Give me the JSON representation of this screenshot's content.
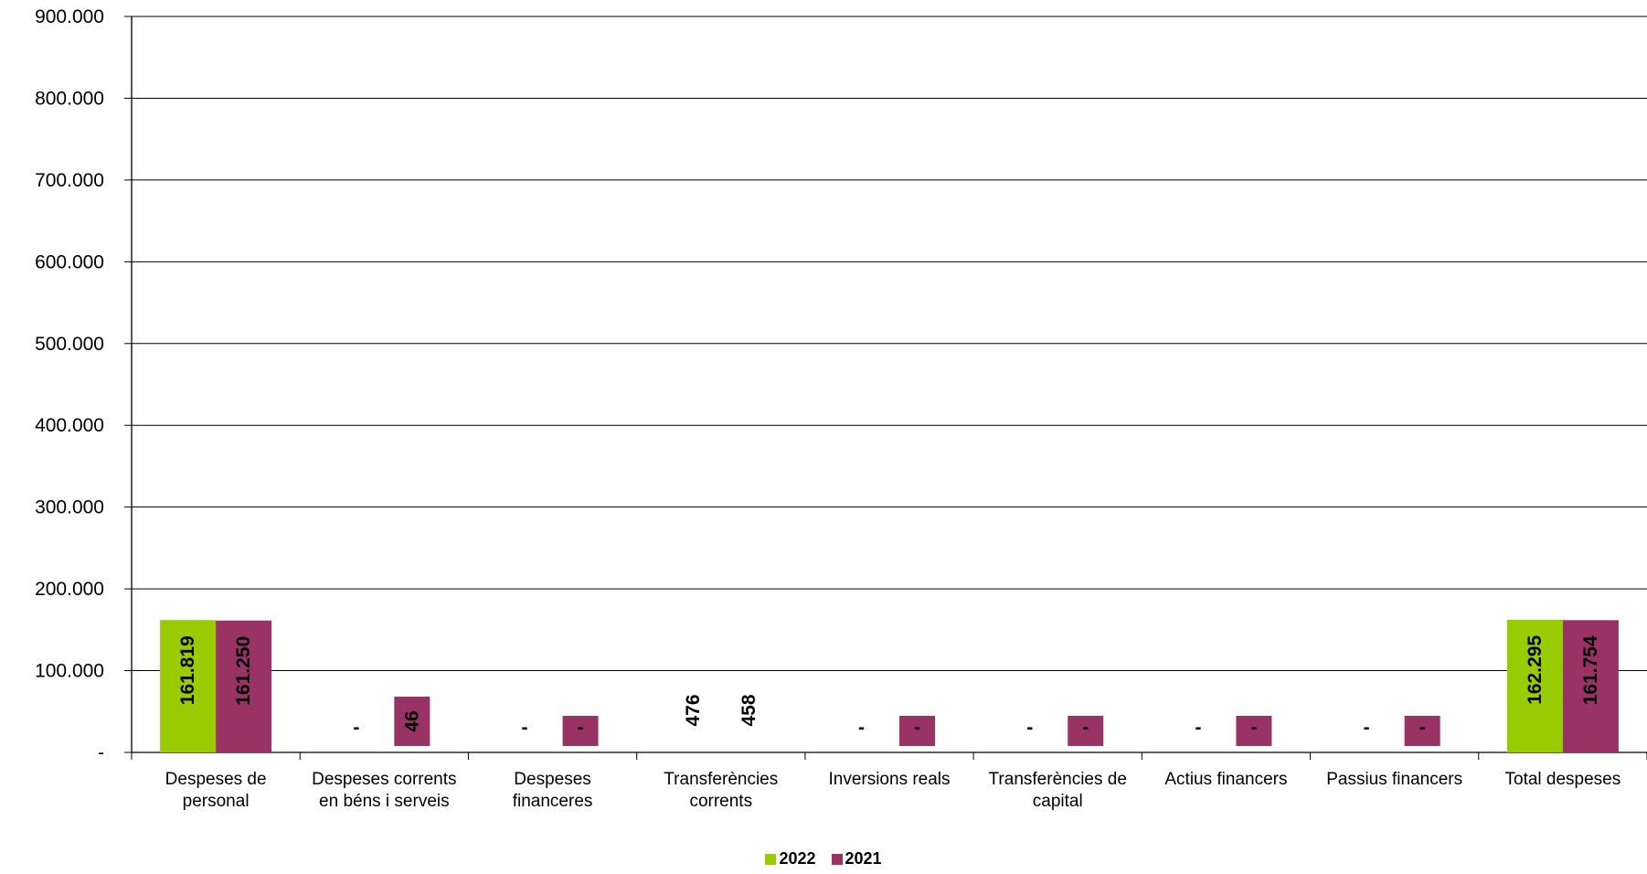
{
  "chart_data": {
    "type": "bar",
    "categories": [
      [
        "Despeses de",
        "personal"
      ],
      [
        "Despeses corrents",
        "en béns i serveis"
      ],
      [
        "Despeses",
        "financeres"
      ],
      [
        "Transferències",
        "corrents"
      ],
      [
        "Inversions reals"
      ],
      [
        "Transferències de",
        "capital"
      ],
      [
        "Actius financers"
      ],
      [
        "Passius financers"
      ],
      [
        "Total despeses"
      ]
    ],
    "series": [
      {
        "name": "2022",
        "color": "#99CC00",
        "values": [
          161819,
          0,
          0,
          476,
          0,
          0,
          0,
          0,
          162295
        ],
        "labels": [
          "161.819",
          "-",
          "-",
          "476",
          "-",
          "-",
          "-",
          "-",
          "162.295"
        ]
      },
      {
        "name": "2021",
        "color": "#993366",
        "values": [
          161250,
          46,
          0,
          458,
          0,
          0,
          0,
          0,
          161754
        ],
        "labels": [
          "161.250",
          "46",
          "-",
          "458",
          "-",
          "-",
          "-",
          "-",
          "161.754"
        ]
      }
    ],
    "ylim": [
      0,
      900000
    ],
    "yticks": [
      0,
      100000,
      200000,
      300000,
      400000,
      500000,
      600000,
      700000,
      800000,
      900000
    ],
    "ytick_labels": [
      "-",
      "100.000",
      "200.000",
      "300.000",
      "400.000",
      "500.000",
      "600.000",
      "700.000",
      "800.000",
      "900.000"
    ],
    "grid": true,
    "legend_position": "bottom"
  }
}
